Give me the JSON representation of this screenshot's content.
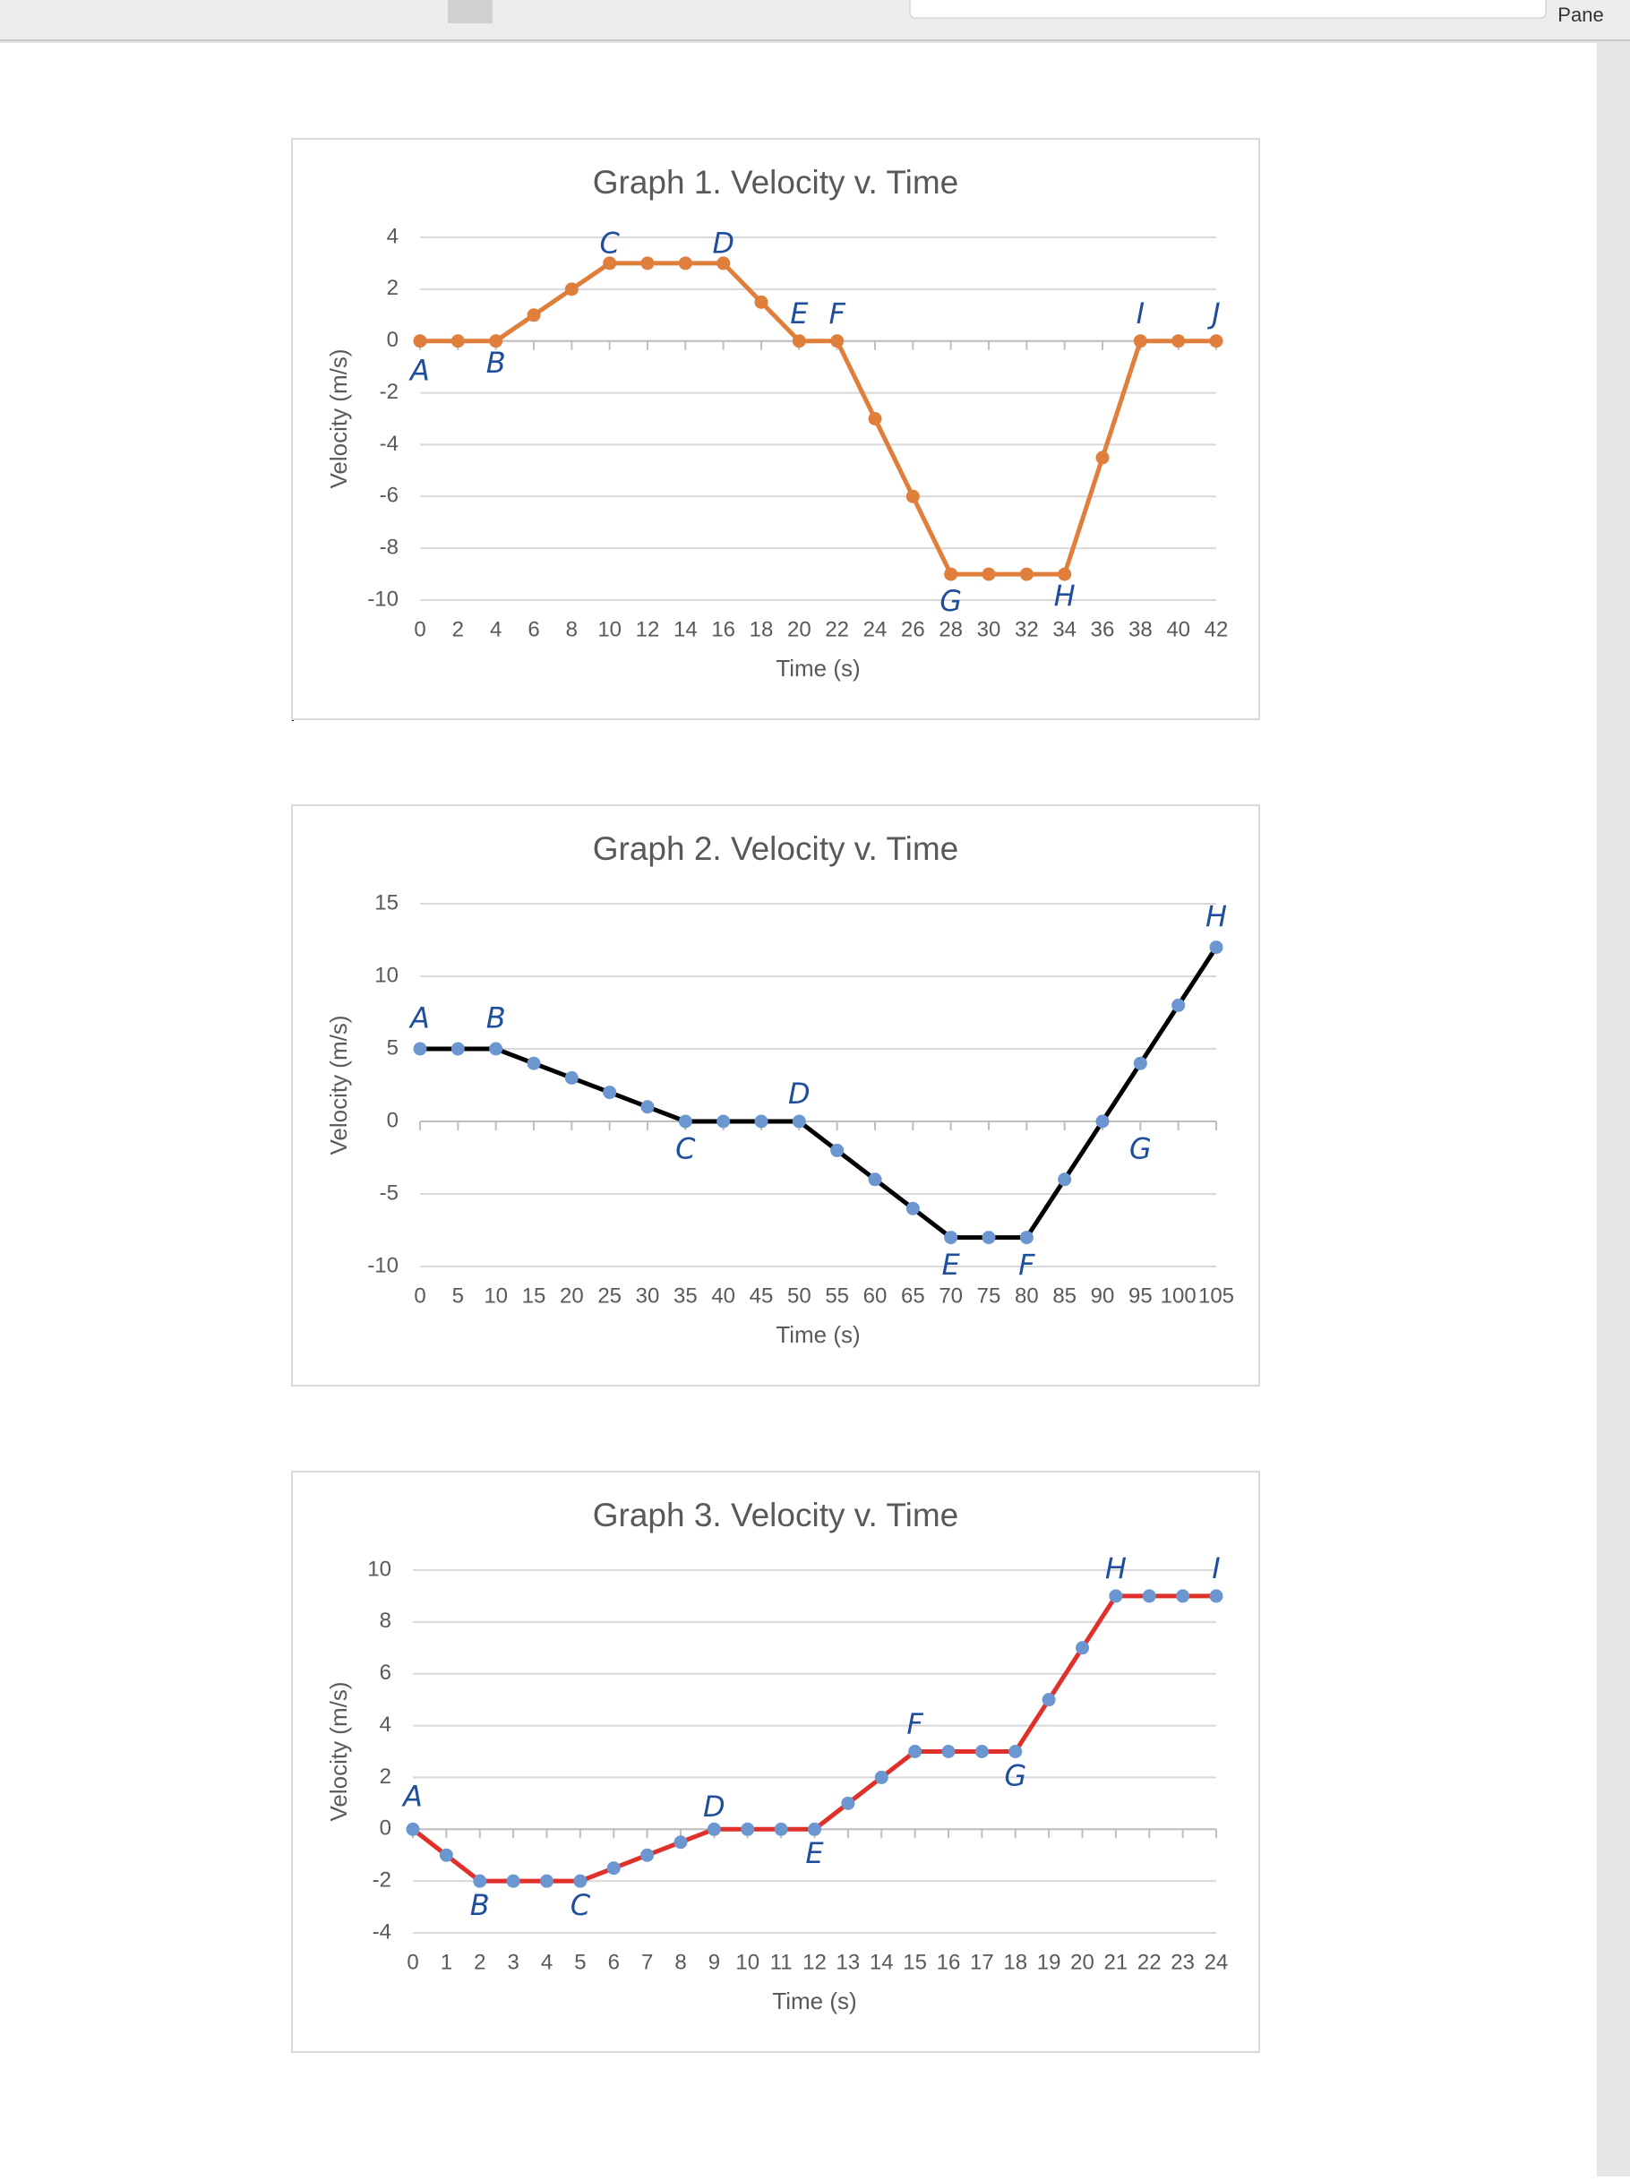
{
  "toolbar": {
    "pane_label": "Pane"
  },
  "chart_data": [
    {
      "type": "line",
      "title": "Graph 1. Velocity v. Time",
      "x_label": "Time (s)",
      "y_label": "Velocity (m/s)",
      "x": [
        0,
        2,
        4,
        6,
        8,
        10,
        12,
        14,
        16,
        18,
        20,
        22,
        24,
        26,
        28,
        30,
        32,
        34,
        36,
        38,
        40,
        42
      ],
      "series": [
        {
          "color": "#e07e3c",
          "marker_color": "#e07e3c",
          "values": [
            0,
            0,
            0,
            1,
            2,
            3,
            3,
            3,
            3,
            1.5,
            0,
            0,
            -3,
            -6,
            -9,
            -9,
            -9,
            -9,
            -4.5,
            0,
            0,
            0
          ]
        }
      ],
      "xlim": [
        0,
        42
      ],
      "xticks": [
        0,
        2,
        4,
        6,
        8,
        10,
        12,
        14,
        16,
        18,
        20,
        22,
        24,
        26,
        28,
        30,
        32,
        34,
        36,
        38,
        40,
        42
      ],
      "ylim": [
        -10,
        4
      ],
      "yticks": [
        -10,
        -8,
        -6,
        -4,
        -2,
        0,
        2,
        4
      ],
      "grid": true,
      "annotations": [
        {
          "text": "A",
          "x": 0,
          "y": -1.2
        },
        {
          "text": "B",
          "x": 4,
          "y": -0.9
        },
        {
          "text": "C",
          "x": 10,
          "y": 3.7
        },
        {
          "text": "D",
          "x": 16,
          "y": 3.7
        },
        {
          "text": "E",
          "x": 20,
          "y": 1
        },
        {
          "text": "F",
          "x": 22,
          "y": 1
        },
        {
          "text": "G",
          "x": 28,
          "y": -10.1
        },
        {
          "text": "H",
          "x": 34,
          "y": -9.9
        },
        {
          "text": "I",
          "x": 38,
          "y": 1
        },
        {
          "text": "J",
          "x": 42,
          "y": 1
        }
      ]
    },
    {
      "type": "line",
      "title": "Graph 2. Velocity v. Time",
      "x_label": "Time (s)",
      "y_label": "Velocity (m/s)",
      "x": [
        0,
        5,
        10,
        15,
        20,
        25,
        30,
        35,
        40,
        45,
        50,
        55,
        60,
        65,
        70,
        75,
        80,
        85,
        90,
        95,
        100,
        105
      ],
      "series": [
        {
          "color": "#000000",
          "marker_color": "#6b96d0",
          "values": [
            5,
            5,
            5,
            4,
            3,
            2,
            1,
            0,
            0,
            0,
            0,
            -2,
            -4,
            -6,
            -8,
            -8,
            -8,
            -4,
            0,
            4,
            8,
            12
          ]
        }
      ],
      "xlim": [
        0,
        105
      ],
      "xticks": [
        0,
        5,
        10,
        15,
        20,
        25,
        30,
        35,
        40,
        45,
        50,
        55,
        60,
        65,
        70,
        75,
        80,
        85,
        90,
        95,
        100,
        105
      ],
      "ylim": [
        -10,
        15
      ],
      "yticks": [
        -10,
        -5,
        0,
        5,
        10,
        15
      ],
      "grid": true,
      "annotations": [
        {
          "text": "A",
          "x": 0,
          "y": 7
        },
        {
          "text": "B",
          "x": 10,
          "y": 7
        },
        {
          "text": "C",
          "x": 35,
          "y": -2
        },
        {
          "text": "D",
          "x": 50,
          "y": 1.8
        },
        {
          "text": "E",
          "x": 70,
          "y": -10
        },
        {
          "text": "F",
          "x": 80,
          "y": -10
        },
        {
          "text": "G",
          "x": 95,
          "y": -2
        },
        {
          "text": "H",
          "x": 105,
          "y": 14
        }
      ]
    },
    {
      "type": "line",
      "title": "Graph 3. Velocity v. Time",
      "x_label": "Time (s)",
      "y_label": "Velocity (m/s)",
      "x": [
        0,
        1,
        2,
        3,
        4,
        5,
        6,
        7,
        8,
        9,
        10,
        11,
        12,
        13,
        14,
        15,
        16,
        17,
        18,
        19,
        20,
        21,
        22,
        23,
        24
      ],
      "series": [
        {
          "color": "#e0302a",
          "marker_color": "#6b96d0",
          "values": [
            0,
            -1,
            -2,
            -2,
            -2,
            -2,
            -1.5,
            -1,
            -0.5,
            0,
            0,
            0,
            0,
            1,
            2,
            3,
            3,
            3,
            3,
            5,
            7,
            9,
            9,
            9,
            9
          ]
        }
      ],
      "xlim": [
        0,
        24
      ],
      "xticks": [
        0,
        1,
        2,
        3,
        4,
        5,
        6,
        7,
        8,
        9,
        10,
        11,
        12,
        13,
        14,
        15,
        16,
        17,
        18,
        19,
        20,
        21,
        22,
        23,
        24
      ],
      "ylim": [
        -4,
        10
      ],
      "yticks": [
        -4,
        -2,
        0,
        2,
        4,
        6,
        8,
        10
      ],
      "grid": true,
      "annotations": [
        {
          "text": "A",
          "x": 0,
          "y": 1.2
        },
        {
          "text": "B",
          "x": 2,
          "y": -3
        },
        {
          "text": "C",
          "x": 5,
          "y": -3
        },
        {
          "text": "D",
          "x": 9,
          "y": 0.8
        },
        {
          "text": "E",
          "x": 12,
          "y": -1
        },
        {
          "text": "F",
          "x": 15,
          "y": 4
        },
        {
          "text": "G",
          "x": 18,
          "y": 2
        },
        {
          "text": "H",
          "x": 21,
          "y": 10
        },
        {
          "text": "I",
          "x": 24,
          "y": 10
        }
      ]
    }
  ]
}
